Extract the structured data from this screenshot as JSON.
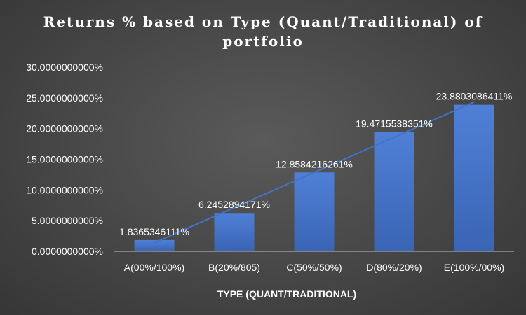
{
  "chart_data": {
    "type": "bar",
    "title_line1": "Returns % based on Type (Quant/Traditional) of",
    "title_line2": "portfolio",
    "xlabel": "TYPE (QUANT/TRADITIONAL)",
    "ylabel": "",
    "categories": [
      "A(00%/100%)",
      "B(20%/805)",
      "C(50%/50%)",
      "D(80%/20%)",
      "E(100%/00%)"
    ],
    "values": [
      1.8365346111,
      6.2452894171,
      12.8584216261,
      19.4715538351,
      23.8803086411
    ],
    "data_labels": [
      "1.8365346111%",
      "6.2452894171%",
      "12.8584216261%",
      "19.4715538351%",
      "23.8803086411%"
    ],
    "ylim": [
      0,
      30
    ],
    "yticks": [
      0,
      5,
      10,
      15,
      20,
      25,
      30
    ],
    "ytick_labels": [
      "0.0000000000%",
      "5.0000000000%",
      "10.0000000000%",
      "15.0000000000%",
      "20.0000000000%",
      "25.0000000000%",
      "30.0000000000%"
    ],
    "trendline": "linear",
    "grid": false,
    "legend": "none",
    "colors": {
      "bar": "#4472c4",
      "trendline": "#4472c4",
      "text": "#ffffff"
    }
  }
}
